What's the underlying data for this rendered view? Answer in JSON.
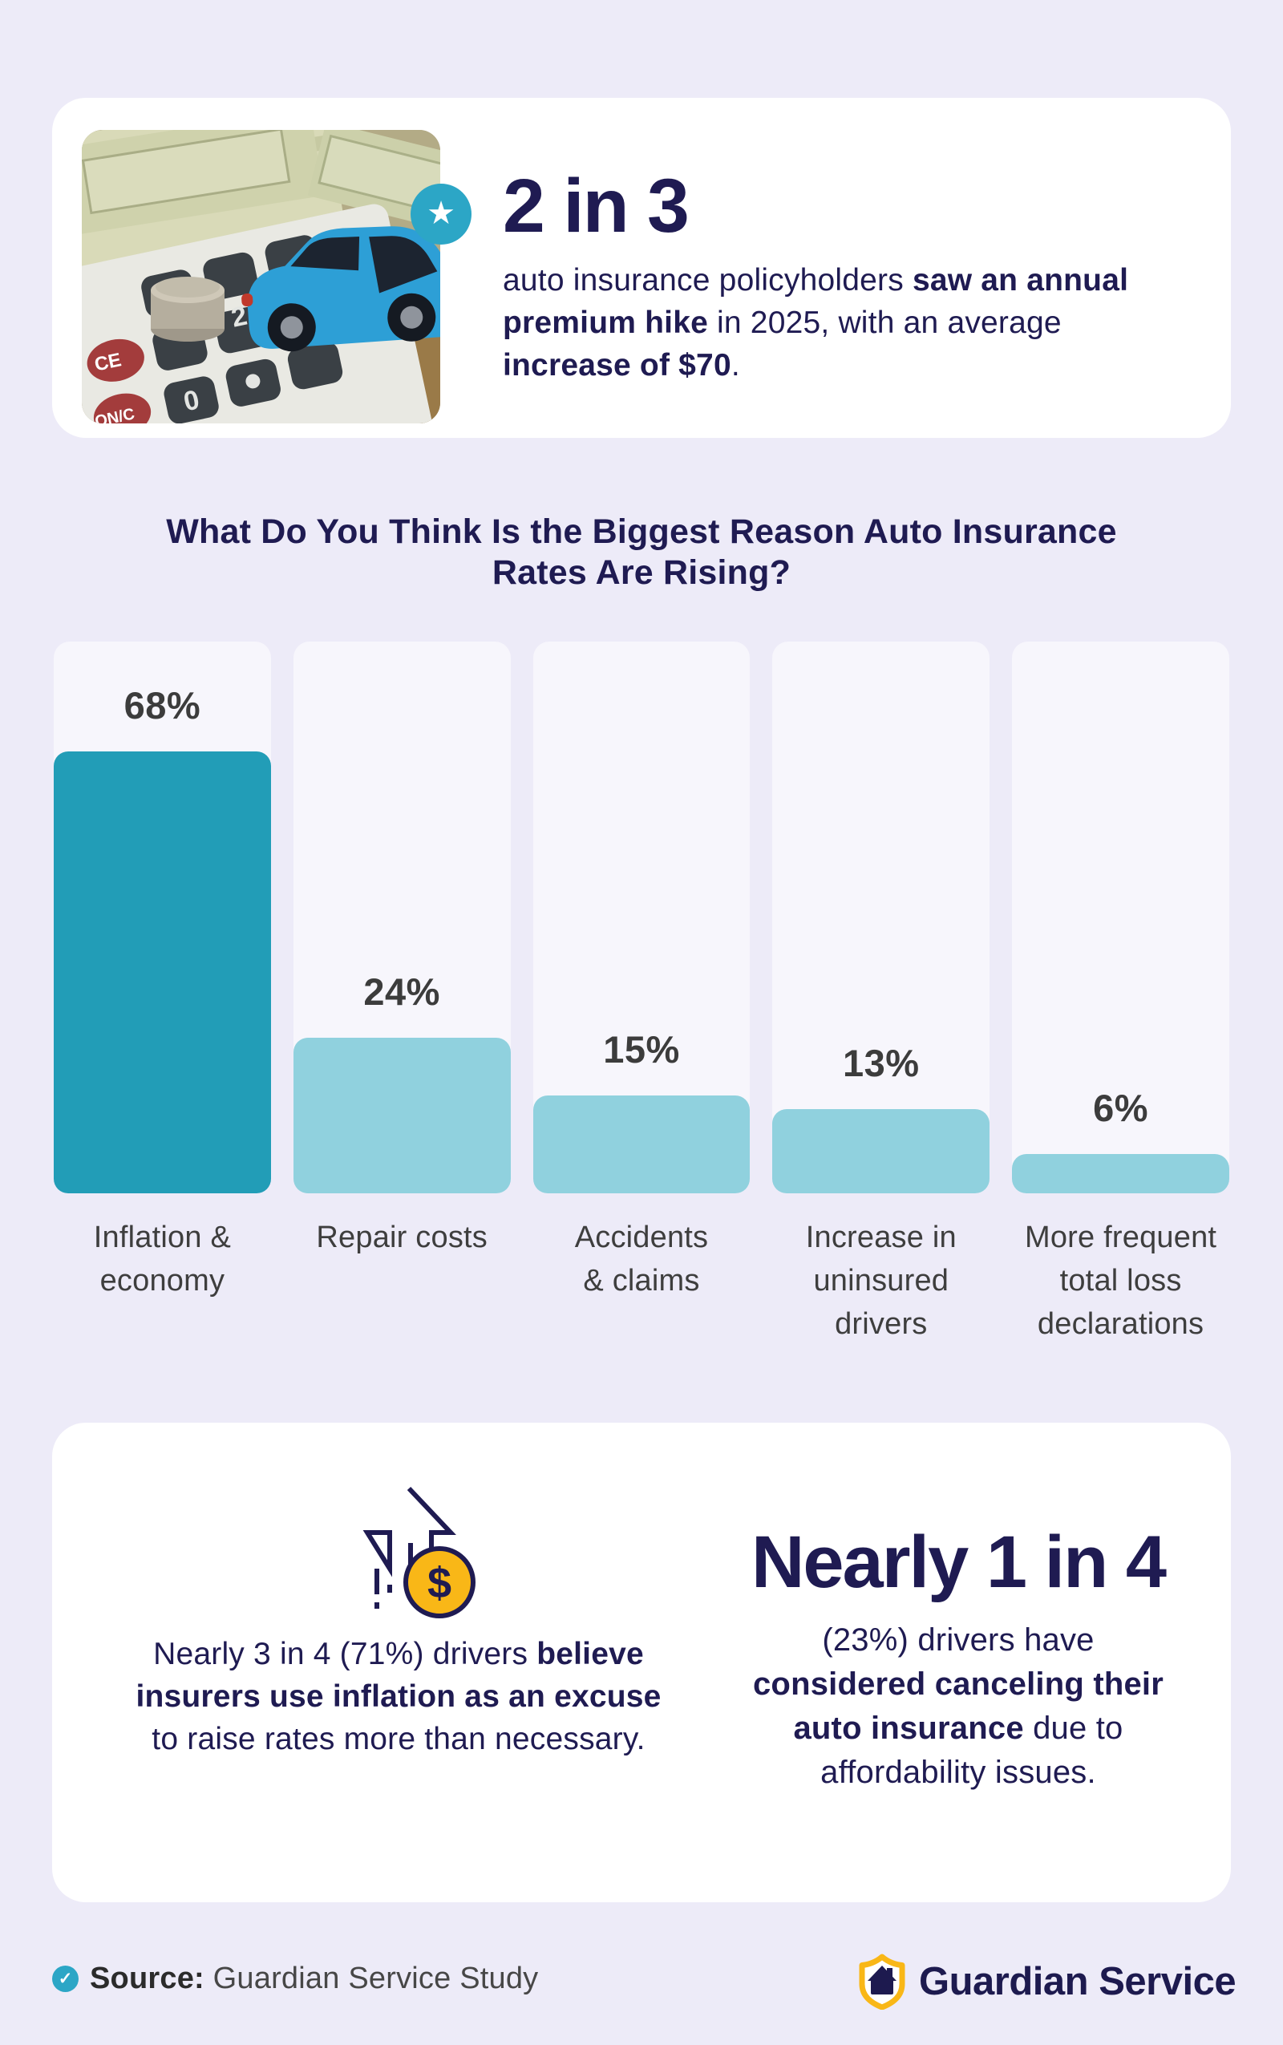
{
  "colors": {
    "page_bg": "#EDEBF8",
    "card_bg": "#FFFFFF",
    "column_bg": "#F7F6FC",
    "bar_highlight": "#229DB7",
    "bar_default": "#90D1DE",
    "navy": "#1F1B52",
    "label_gray": "#3C3C3C",
    "accent_teal": "#2CA6C6",
    "accent_yellow": "#F9B717"
  },
  "hero": {
    "photo_alt": "toy-car-on-calculator-with-money-photo",
    "badge_icon": "star-icon",
    "headline": "2 in 3",
    "body_r1": "auto insurance policyholders ",
    "body_b1": "saw an annual premium hike",
    "body_r2": " in 2025, with an average ",
    "body_b2": "increase of $70",
    "body_r3": "."
  },
  "chart_data": {
    "type": "bar",
    "title": "What Do You Think Is the Biggest Reason Auto Insurance Rates Are Rising?",
    "title_lines": [
      "What Do You Think Is the Biggest Reason Auto Insurance",
      "Rates Are Rising?"
    ],
    "categories": [
      "Inflation & economy",
      "Repair costs",
      "Accidents & claims",
      "Increase in uninsured drivers",
      "More frequent total loss declarations"
    ],
    "categories_display": [
      "Inflation &\neconomy",
      "Repair costs",
      "Accidents\n& claims",
      "Increase in\nuninsured\ndrivers",
      "More frequent\ntotal loss\ndeclarations"
    ],
    "values": [
      68,
      24,
      15,
      13,
      6
    ],
    "unit": "%",
    "value_labels": "above-bars",
    "highlight_index": 0,
    "xlabel": "",
    "ylabel": "",
    "ylim": [
      0,
      85
    ],
    "grid": false,
    "legend": "none"
  },
  "insights": {
    "left": {
      "icon": "rising-dollar-arrow-icon",
      "r1": "Nearly 3 in 4 (71%) drivers ",
      "b1": "believe insurers use inflation as an excuse",
      "r2": " to raise rates more than necessary."
    },
    "right": {
      "headline": "Nearly 1 in 4",
      "r1": "(23%) drivers have ",
      "b1": "considered canceling their auto insurance",
      "r2": " due to affordability issues."
    }
  },
  "footer": {
    "check_icon": "checkmark-icon",
    "source_label": "Source:",
    "source_text": " Guardian Service Study",
    "logo_icon": "shield-house-icon",
    "brand": "Guardian Service"
  }
}
